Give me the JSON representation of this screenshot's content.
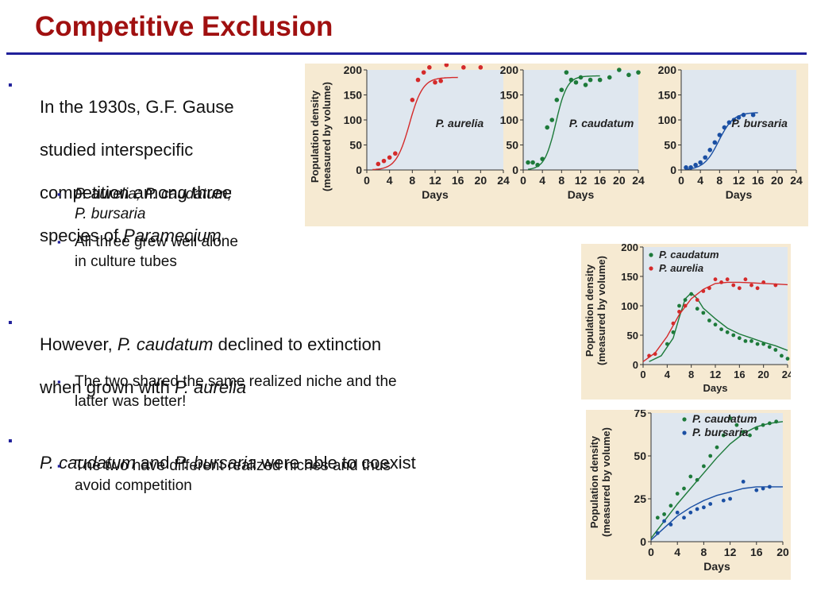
{
  "title": "Competitive Exclusion",
  "text": {
    "b1_lines": [
      "In the 1930s, G.F. Gause",
      "studied interspecific",
      "competition among three",
      "species of "
    ],
    "b1_genus": "Paramecium",
    "b1_sub1": "P. aurelia; P. caudatum;",
    "b1_sub1b": "P. bursaria",
    "b1_sub2a": "All three grew well alone",
    "b1_sub2b": "in culture tubes",
    "b2_pre": "However, ",
    "b2_sp1": "P. caudatum",
    "b2_mid": " declined to extinction",
    "b2_line2": "when grown with ",
    "b2_sp2": "P. aurelia",
    "b2_sub1a": "The two shared the same realized niche and the",
    "b2_sub1b": "latter was better!",
    "b3_sp1": "P. caudatum",
    "b3_mid": " and ",
    "b3_sp2": "P. bursaria",
    "b3_end": " were able to coexist",
    "b3_sub1a": "The two have different realized niches and thus",
    "b3_sub1b": "avoid competition"
  },
  "colors": {
    "title": "#a01010",
    "rule": "#20209a",
    "aurelia": "#d42a2a",
    "caudatum": "#1d7a3a",
    "bursaria": "#1a4fa3",
    "plot_bg": "#dfe7ef",
    "panel_bg": "#f6ead2"
  },
  "chart_data": [
    {
      "type": "line",
      "id": "alone",
      "ylabel": "Population density\n(measured by volume)",
      "xlabel": "Days",
      "xticks": [
        0,
        4,
        8,
        12,
        16,
        20,
        24
      ],
      "yticks": [
        0,
        50,
        100,
        150,
        200
      ],
      "xlim": [
        0,
        24
      ],
      "ylim": [
        0,
        200
      ],
      "panels": [
        {
          "label": "P. aurelia",
          "color": "#d42a2a",
          "points": [
            [
              2,
              12
            ],
            [
              3,
              18
            ],
            [
              4,
              25
            ],
            [
              5,
              33
            ],
            [
              8,
              140
            ],
            [
              9,
              180
            ],
            [
              10,
              195
            ],
            [
              11,
              205
            ],
            [
              12,
              175
            ],
            [
              13,
              178
            ],
            [
              14,
              210
            ],
            [
              17,
              205
            ],
            [
              20,
              205
            ]
          ],
          "curve": {
            "K": 185,
            "r": 0.85,
            "t0": 7.5
          }
        },
        {
          "label": "P. caudatum",
          "color": "#1d7a3a",
          "points": [
            [
              1,
              15
            ],
            [
              2,
              15
            ],
            [
              3,
              10
            ],
            [
              4,
              22
            ],
            [
              5,
              85
            ],
            [
              6,
              100
            ],
            [
              7,
              140
            ],
            [
              8,
              160
            ],
            [
              9,
              195
            ],
            [
              10,
              180
            ],
            [
              11,
              175
            ],
            [
              12,
              185
            ],
            [
              13,
              170
            ],
            [
              14,
              180
            ],
            [
              16,
              180
            ],
            [
              18,
              185
            ],
            [
              20,
              200
            ],
            [
              22,
              190
            ],
            [
              24,
              195
            ]
          ],
          "curve": {
            "K": 188,
            "r": 0.85,
            "t0": 6.8
          }
        },
        {
          "label": "P. bursaria",
          "color": "#1a4fa3",
          "points": [
            [
              1,
              5
            ],
            [
              2,
              5
            ],
            [
              3,
              10
            ],
            [
              4,
              15
            ],
            [
              5,
              25
            ],
            [
              6,
              40
            ],
            [
              7,
              55
            ],
            [
              8,
              70
            ],
            [
              9,
              85
            ],
            [
              10,
              95
            ],
            [
              11,
              100
            ],
            [
              12,
              105
            ],
            [
              13,
              110
            ],
            [
              15,
              110
            ]
          ],
          "curve": {
            "K": 115,
            "r": 0.65,
            "t0": 7.8
          }
        }
      ]
    },
    {
      "type": "line",
      "id": "caudatum_vs_aurelia",
      "ylabel": "Population density\n(measured by volume)",
      "xlabel": "Days",
      "xticks": [
        0,
        4,
        8,
        12,
        16,
        20,
        24
      ],
      "yticks": [
        0,
        50,
        100,
        150,
        200
      ],
      "xlim": [
        0,
        24
      ],
      "ylim": [
        0,
        200
      ],
      "series": [
        {
          "name": "P. caudatum",
          "color": "#1d7a3a",
          "points": [
            [
              4,
              35
            ],
            [
              5,
              55
            ],
            [
              6,
              100
            ],
            [
              7,
              110
            ],
            [
              8,
              120
            ],
            [
              9,
              95
            ],
            [
              10,
              88
            ],
            [
              11,
              75
            ],
            [
              12,
              68
            ],
            [
              13,
              60
            ],
            [
              14,
              55
            ],
            [
              15,
              50
            ],
            [
              16,
              45
            ],
            [
              17,
              40
            ],
            [
              18,
              40
            ],
            [
              19,
              35
            ],
            [
              20,
              35
            ],
            [
              21,
              30
            ],
            [
              22,
              25
            ],
            [
              23,
              15
            ],
            [
              24,
              10
            ]
          ],
          "curve": [
            [
              1,
              5
            ],
            [
              3,
              15
            ],
            [
              5,
              45
            ],
            [
              6,
              80
            ],
            [
              7,
              112
            ],
            [
              8,
              122
            ],
            [
              9,
              112
            ],
            [
              10,
              96
            ],
            [
              12,
              78
            ],
            [
              14,
              62
            ],
            [
              16,
              52
            ],
            [
              18,
              45
            ],
            [
              20,
              38
            ],
            [
              22,
              32
            ],
            [
              24,
              24
            ]
          ]
        },
        {
          "name": "P. aurelia",
          "color": "#d42a2a",
          "points": [
            [
              1,
              15
            ],
            [
              2,
              18
            ],
            [
              5,
              70
            ],
            [
              6,
              90
            ],
            [
              7,
              100
            ],
            [
              9,
              110
            ],
            [
              10,
              125
            ],
            [
              11,
              130
            ],
            [
              12,
              145
            ],
            [
              13,
              140
            ],
            [
              14,
              145
            ],
            [
              15,
              135
            ],
            [
              16,
              130
            ],
            [
              17,
              145
            ],
            [
              18,
              135
            ],
            [
              19,
              130
            ],
            [
              20,
              140
            ],
            [
              22,
              135
            ]
          ],
          "curve": [
            [
              0,
              5
            ],
            [
              2,
              20
            ],
            [
              4,
              48
            ],
            [
              6,
              85
            ],
            [
              8,
              112
            ],
            [
              10,
              128
            ],
            [
              12,
              138
            ],
            [
              14,
              140
            ],
            [
              16,
              140
            ],
            [
              18,
              139
            ],
            [
              20,
              138
            ],
            [
              22,
              137
            ],
            [
              24,
              136
            ]
          ]
        }
      ]
    },
    {
      "type": "line",
      "id": "caudatum_vs_bursaria",
      "ylabel": "Population density\n(measured by volume)",
      "xlabel": "Days",
      "xticks": [
        0,
        4,
        8,
        12,
        16,
        20
      ],
      "yticks": [
        0,
        25,
        50,
        75
      ],
      "xlim": [
        0,
        20
      ],
      "ylim": [
        0,
        75
      ],
      "series": [
        {
          "name": "P. caudatum",
          "color": "#1d7a3a",
          "points": [
            [
              1,
              14
            ],
            [
              2,
              16
            ],
            [
              3,
              21
            ],
            [
              4,
              28
            ],
            [
              5,
              31
            ],
            [
              6,
              38
            ],
            [
              7,
              36
            ],
            [
              8,
              44
            ],
            [
              9,
              50
            ],
            [
              10,
              55
            ],
            [
              11,
              62
            ],
            [
              12,
              72
            ],
            [
              13,
              68
            ],
            [
              14,
              64
            ],
            [
              15,
              62
            ],
            [
              16,
              66
            ],
            [
              17,
              68
            ],
            [
              18,
              69
            ],
            [
              19,
              70
            ]
          ],
          "curve": [
            [
              0,
              2
            ],
            [
              2,
              12
            ],
            [
              4,
              22
            ],
            [
              6,
              31
            ],
            [
              8,
              40
            ],
            [
              10,
              49
            ],
            [
              12,
              57
            ],
            [
              14,
              63
            ],
            [
              16,
              67
            ],
            [
              18,
              69
            ],
            [
              20,
              70
            ]
          ]
        },
        {
          "name": "P. bursaria",
          "color": "#1a4fa3",
          "points": [
            [
              1,
              5
            ],
            [
              2,
              12
            ],
            [
              3,
              10
            ],
            [
              4,
              17
            ],
            [
              5,
              14
            ],
            [
              6,
              17
            ],
            [
              7,
              19
            ],
            [
              8,
              20
            ],
            [
              9,
              22
            ],
            [
              11,
              24
            ],
            [
              12,
              25
            ],
            [
              14,
              35
            ],
            [
              16,
              30
            ],
            [
              17,
              31
            ],
            [
              18,
              32
            ]
          ],
          "curve": [
            [
              0,
              1
            ],
            [
              2,
              8
            ],
            [
              4,
              15
            ],
            [
              6,
              20
            ],
            [
              8,
              24
            ],
            [
              10,
              27
            ],
            [
              12,
              29
            ],
            [
              14,
              31
            ],
            [
              16,
              32
            ],
            [
              18,
              32
            ],
            [
              20,
              32
            ]
          ]
        }
      ]
    }
  ]
}
